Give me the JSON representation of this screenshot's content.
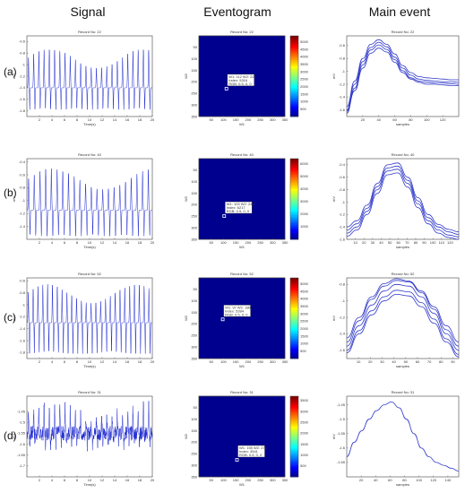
{
  "column_headers": [
    "Signal",
    "Eventogram",
    "Main event"
  ],
  "row_labels": [
    "(a)",
    "(b)",
    "(c)",
    "(d)"
  ],
  "colors": {
    "signal_line": "#1f2bd0",
    "event_line": "#2f38c8",
    "eventogram_bg": "#00008f",
    "marker": "#ffffff"
  },
  "chart_data": [
    {
      "type": "line",
      "title": "Record No: 22",
      "xlabel": "Time(s)",
      "ylabel": "mV",
      "xlim": [
        0,
        20
      ],
      "ylim": [
        -1.9,
        -0.5
      ],
      "xticks": [
        "2",
        "4",
        "6",
        "8",
        "10",
        "12",
        "14",
        "16",
        "18",
        "20"
      ],
      "yticks": [
        "-0.6",
        "-0.8",
        "-1",
        "-1.2",
        "-1.4",
        "-1.6",
        "-1.8"
      ],
      "signal": {
        "beats": 24,
        "upper": -0.72,
        "lower": -1.78,
        "base": -1.4
      }
    },
    {
      "type": "heatmap",
      "title": "Record No: 22",
      "xlabel": "W1",
      "ylabel": "W2",
      "xlim": [
        0,
        350
      ],
      "ylim": [
        0,
        350
      ],
      "xticks": [
        "50",
        "100",
        "150",
        "200",
        "250",
        "300",
        "350"
      ],
      "yticks": [
        "350",
        "300",
        "250",
        "200",
        "150",
        "100",
        "50"
      ],
      "colorbar_ticks": [
        "5000",
        "4500",
        "4000",
        "3500",
        "3000",
        "2500",
        "2000",
        "1500",
        "1000",
        "500"
      ],
      "colorbar_max": 5400,
      "marker": {
        "w1": 112,
        "w2": 229,
        "lines": [
          "W1: 112  W2: 229",
          "Index: 5316",
          "RGB: 0.5, 0, 0"
        ]
      }
    },
    {
      "type": "line",
      "title": "Record No: 22",
      "xlabel": "samples",
      "ylabel": "mV",
      "xlim": [
        0,
        140
      ],
      "ylim": [
        -1.7,
        -0.45
      ],
      "xticks": [
        "20",
        "40",
        "60",
        "80",
        "100",
        "120"
      ],
      "yticks": [
        "-0.6",
        "-0.8",
        "-1",
        "-1.2",
        "-1.4",
        "-1.6"
      ],
      "series": [
        {
          "values": [
            -1.6,
            -1.2,
            -0.85,
            -0.63,
            -0.55,
            -0.62,
            -0.78,
            -0.95,
            -1.06,
            -1.12,
            -1.14,
            -1.15,
            -1.16,
            -1.16,
            -1.17
          ]
        },
        {
          "values": [
            -1.65,
            -1.26,
            -0.9,
            -0.67,
            -0.59,
            -0.66,
            -0.82,
            -0.99,
            -1.1,
            -1.15,
            -1.17,
            -1.18,
            -1.18,
            -1.19,
            -1.2
          ]
        },
        {
          "values": [
            -1.55,
            -1.15,
            -0.8,
            -0.58,
            -0.51,
            -0.58,
            -0.73,
            -0.91,
            -1.02,
            -1.08,
            -1.1,
            -1.11,
            -1.12,
            -1.13,
            -1.13
          ]
        },
        {
          "values": [
            -1.62,
            -1.3,
            -0.95,
            -0.72,
            -0.64,
            -0.7,
            -0.86,
            -1.02,
            -1.12,
            -1.17,
            -1.2,
            -1.2,
            -1.21,
            -1.22,
            -1.22
          ]
        }
      ]
    },
    {
      "type": "line",
      "title": "Record No: 40",
      "xlabel": "Time(s)",
      "ylabel": "mV",
      "xlim": [
        0,
        20
      ],
      "ylim": [
        -1.6,
        -0.35
      ],
      "xticks": [
        "2",
        "4",
        "6",
        "8",
        "10",
        "12",
        "14",
        "16",
        "18",
        "20"
      ],
      "yticks": [
        "-0.4",
        "-0.6",
        "-0.8",
        "-1",
        "-1.2",
        "-1.4"
      ],
      "signal": {
        "beats": 22,
        "upper": -0.5,
        "lower": -1.55,
        "base": -1.15
      }
    },
    {
      "type": "heatmap",
      "title": "Record No: 40",
      "xlabel": "W1",
      "ylabel": "W2",
      "xlim": [
        0,
        350
      ],
      "ylim": [
        0,
        350
      ],
      "xticks": [
        "50",
        "100",
        "150",
        "200",
        "250",
        "300",
        "350"
      ],
      "yticks": [
        "350",
        "300",
        "250",
        "200",
        "150",
        "100",
        "50"
      ],
      "colorbar_ticks": [
        "6000",
        "5000",
        "4000",
        "3000",
        "2000",
        "1000"
      ],
      "colorbar_max": 6400,
      "marker": {
        "w1": 103,
        "w2": 249,
        "lines": [
          "W1: 103  W2: 249",
          "Index: 6217",
          "RGB: 0.5, 0, 0"
        ]
      }
    },
    {
      "type": "line",
      "title": "Record No: 40",
      "xlabel": "samples",
      "ylabel": "mV",
      "xlim": [
        0,
        130
      ],
      "ylim": [
        -1.6,
        -0.3
      ],
      "xticks": [
        "10",
        "20",
        "30",
        "40",
        "50",
        "60",
        "70",
        "80",
        "90",
        "100",
        "110",
        "120"
      ],
      "yticks": [
        "-0.4",
        "-0.6",
        "-0.8",
        "-1",
        "-1.2",
        "-1.4",
        "-1.6"
      ],
      "series": [
        {
          "values": [
            -1.45,
            -1.35,
            -1.1,
            -0.75,
            -0.45,
            -0.42,
            -0.65,
            -0.98,
            -1.25,
            -1.4,
            -1.48,
            -1.52
          ]
        },
        {
          "values": [
            -1.5,
            -1.4,
            -1.15,
            -0.8,
            -0.5,
            -0.47,
            -0.7,
            -1.03,
            -1.3,
            -1.45,
            -1.53,
            -1.56
          ]
        },
        {
          "values": [
            -1.4,
            -1.3,
            -1.05,
            -0.7,
            -0.4,
            -0.37,
            -0.6,
            -0.93,
            -1.2,
            -1.36,
            -1.44,
            -1.48
          ]
        },
        {
          "values": [
            -1.55,
            -1.45,
            -1.2,
            -0.86,
            -0.56,
            -0.53,
            -0.76,
            -1.09,
            -1.35,
            -1.5,
            -1.57,
            -1.6
          ]
        }
      ]
    },
    {
      "type": "line",
      "title": "Record No: 52",
      "xlabel": "Time(s)",
      "ylabel": "mV",
      "xlim": [
        0,
        20
      ],
      "ylim": [
        -1.9,
        -0.55
      ],
      "xticks": [
        "2",
        "4",
        "6",
        "8",
        "10",
        "12",
        "14",
        "16",
        "18",
        "20"
      ],
      "yticks": [
        "-0.6",
        "-0.8",
        "-1",
        "-1.2",
        "-1.4",
        "-1.6",
        "-1.8"
      ],
      "signal": {
        "beats": 26,
        "upper": -0.65,
        "lower": -1.82,
        "base": -1.3
      }
    },
    {
      "type": "heatmap",
      "title": "Record No: 52",
      "xlabel": "W1",
      "ylabel": "W2",
      "xlim": [
        0,
        350
      ],
      "ylim": [
        0,
        350
      ],
      "xticks": [
        "50",
        "100",
        "150",
        "200",
        "250",
        "300",
        "350"
      ],
      "yticks": [
        "350",
        "300",
        "250",
        "200",
        "150",
        "100",
        "50"
      ],
      "colorbar_ticks": [
        "5000",
        "4500",
        "4000",
        "3500",
        "3000",
        "2500",
        "2000",
        "1500",
        "1000",
        "500"
      ],
      "colorbar_max": 5400,
      "marker": {
        "w1": 97,
        "w2": 180,
        "lines": [
          "W1: 97  W2: 180",
          "Index: 5284",
          "RGB: 0.5, 0, 0"
        ]
      }
    },
    {
      "type": "line",
      "title": "Record No: 52",
      "xlabel": "samples",
      "ylabel": "mV",
      "xlim": [
        0,
        95
      ],
      "ylim": [
        -1.7,
        -0.72
      ],
      "xticks": [
        "10",
        "20",
        "30",
        "40",
        "50",
        "60",
        "70",
        "80",
        "90"
      ],
      "yticks": [
        "-0.8",
        "-1",
        "-1.2",
        "-1.4",
        "-1.6"
      ],
      "series": [
        {
          "values": [
            -1.55,
            -1.3,
            -1.05,
            -0.88,
            -0.8,
            -0.82,
            -0.95,
            -1.15,
            -1.4,
            -1.6
          ]
        },
        {
          "values": [
            -1.6,
            -1.36,
            -1.12,
            -0.95,
            -0.87,
            -0.89,
            -1.02,
            -1.22,
            -1.46,
            -1.65
          ]
        },
        {
          "values": [
            -1.5,
            -1.24,
            -0.98,
            -0.82,
            -0.75,
            -0.77,
            -0.9,
            -1.1,
            -1.35,
            -1.55
          ]
        },
        {
          "values": [
            -1.63,
            -1.4,
            -1.17,
            -1.0,
            -0.92,
            -0.94,
            -1.07,
            -1.27,
            -1.5,
            -1.68
          ]
        },
        {
          "values": [
            -1.45,
            -1.2,
            -0.95,
            -0.79,
            -0.73,
            -0.76,
            -0.88,
            -1.07,
            -1.3,
            -1.5
          ]
        }
      ]
    },
    {
      "type": "line",
      "title": "Record No: 31",
      "xlabel": "Time(s)",
      "ylabel": "mV",
      "xlim": [
        0,
        20
      ],
      "ylim": [
        -1.75,
        -1.38
      ],
      "xticks": [
        "2",
        "4",
        "6",
        "8",
        "10",
        "12",
        "14",
        "16",
        "18",
        "20"
      ],
      "yticks": [
        "-1.45",
        "-1.5",
        "-1.55",
        "-1.6",
        "-1.65",
        "-1.7"
      ],
      "signal": {
        "beats": 24,
        "upper": -1.42,
        "lower": -1.6,
        "base": -1.55,
        "noisy": true
      }
    },
    {
      "type": "heatmap",
      "title": "Record No: 31",
      "xlabel": "W1",
      "ylabel": "W2",
      "xlim": [
        0,
        350
      ],
      "ylim": [
        0,
        350
      ],
      "xticks": [
        "50",
        "100",
        "150",
        "200",
        "250",
        "300",
        "350"
      ],
      "yticks": [
        "350",
        "300",
        "250",
        "200",
        "150",
        "100",
        "50"
      ],
      "colorbar_ticks": [
        "3500",
        "3000",
        "2500",
        "2000",
        "1500",
        "1000",
        "500"
      ],
      "colorbar_max": 3700,
      "marker": {
        "w1": 155,
        "w2": 276,
        "lines": [
          "W1: 155  W2: 276",
          "Index: 3541",
          "RGB: 0.5, 0, 0"
        ]
      }
    },
    {
      "type": "line",
      "title": "Record No: 31",
      "xlabel": "samples",
      "ylabel": "mV",
      "xlim": [
        0,
        155
      ],
      "ylim": [
        -1.7,
        -1.42
      ],
      "xticks": [
        "20",
        "40",
        "60",
        "80",
        "100",
        "120",
        "140"
      ],
      "yticks": [
        "-1.45",
        "-1.5",
        "-1.55",
        "-1.6",
        "-1.65"
      ],
      "series": [
        {
          "values": [
            -1.63,
            -1.58,
            -1.54,
            -1.5,
            -1.47,
            -1.45,
            -1.44,
            -1.46,
            -1.5,
            -1.55,
            -1.6,
            -1.63,
            -1.65,
            -1.66,
            -1.67,
            -1.68
          ]
        }
      ]
    }
  ]
}
